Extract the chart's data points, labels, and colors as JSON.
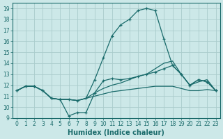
{
  "xlabel": "Humidex (Indice chaleur)",
  "bg_color": "#cce8e8",
  "grid_color": "#aacccc",
  "line_color": "#1a6b6b",
  "xlim": [
    -0.5,
    23.5
  ],
  "ylim": [
    9,
    19.5
  ],
  "xticks": [
    0,
    1,
    2,
    3,
    4,
    5,
    6,
    7,
    8,
    9,
    10,
    11,
    12,
    13,
    14,
    15,
    16,
    17,
    18,
    19,
    20,
    21,
    22,
    23
  ],
  "yticks": [
    9,
    10,
    11,
    12,
    13,
    14,
    15,
    16,
    17,
    18,
    19
  ],
  "line_peak_x": [
    0,
    1,
    2,
    3,
    4,
    5,
    6,
    7,
    8,
    9,
    10,
    11,
    12,
    13,
    14,
    15,
    16,
    17,
    18,
    19,
    20,
    21,
    22,
    23
  ],
  "line_peak_y": [
    11.5,
    11.9,
    11.9,
    11.5,
    10.8,
    10.7,
    10.7,
    10.6,
    10.8,
    12.5,
    14.5,
    16.5,
    17.5,
    18.0,
    18.8,
    19.0,
    18.8,
    16.2,
    13.8,
    13.0,
    12.0,
    12.5,
    12.3,
    11.5
  ],
  "line_upper_x": [
    0,
    1,
    2,
    3,
    4,
    5,
    6,
    7,
    8,
    9,
    10,
    11,
    12,
    13,
    14,
    15,
    16,
    17,
    18,
    19,
    20,
    21,
    22,
    23
  ],
  "line_upper_y": [
    11.5,
    11.9,
    11.9,
    11.5,
    10.8,
    10.7,
    10.7,
    10.6,
    10.8,
    11.3,
    11.7,
    12.0,
    12.2,
    12.5,
    12.8,
    13.0,
    13.5,
    14.0,
    14.2,
    13.0,
    12.0,
    12.3,
    12.5,
    11.5
  ],
  "line_lower_x": [
    0,
    1,
    2,
    3,
    4,
    5,
    6,
    7,
    8,
    9,
    10,
    11,
    12,
    13,
    14,
    15,
    16,
    17,
    18,
    19,
    20,
    21,
    22,
    23
  ],
  "line_lower_y": [
    11.5,
    11.9,
    11.9,
    11.5,
    10.8,
    10.7,
    10.7,
    10.6,
    10.8,
    11.0,
    11.2,
    11.4,
    11.5,
    11.6,
    11.7,
    11.8,
    11.9,
    11.9,
    11.9,
    11.7,
    11.5,
    11.5,
    11.6,
    11.5
  ],
  "line_dip_x": [
    0,
    1,
    2,
    3,
    4,
    5,
    6,
    7,
    8,
    9,
    10,
    11,
    12,
    13,
    14,
    15,
    16,
    17,
    18,
    19,
    20,
    21,
    22,
    23
  ],
  "line_dip_y": [
    11.5,
    11.9,
    11.9,
    11.5,
    10.8,
    10.7,
    9.2,
    9.5,
    9.5,
    11.3,
    12.4,
    12.6,
    12.5,
    12.6,
    12.8,
    13.0,
    13.2,
    13.5,
    13.8,
    13.0,
    12.0,
    12.5,
    12.3,
    11.5
  ]
}
